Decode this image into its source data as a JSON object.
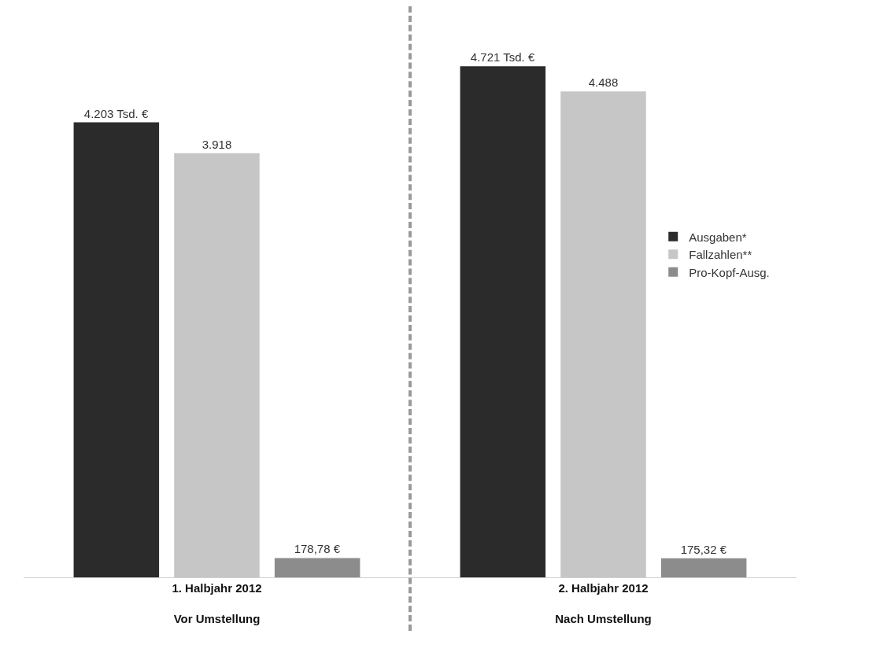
{
  "chart_data": {
    "type": "bar",
    "categories": [
      "1. Halbjahr 2012\nVor Umstellung",
      "2. Halbjahr 2012\nNach Umstellung"
    ],
    "series": [
      {
        "name": "Ausgaben*",
        "color": "#2b2b2b",
        "values": [
          4203,
          4721
        ],
        "value_labels": [
          "4.203 Tsd. €",
          "4.721 Tsd. €"
        ]
      },
      {
        "name": "Fallzahlen**",
        "color": "#c6c6c6",
        "values": [
          3918,
          4488
        ],
        "value_labels": [
          "3.918",
          "4.488"
        ]
      },
      {
        "name": "Pro-Kopf-Ausg.",
        "color": "#8c8c8c",
        "values": [
          178.78,
          175.32
        ],
        "value_labels": [
          "178,78 €",
          "175,32 €"
        ]
      }
    ],
    "tick_labels": "x",
    "legend": "right"
  }
}
